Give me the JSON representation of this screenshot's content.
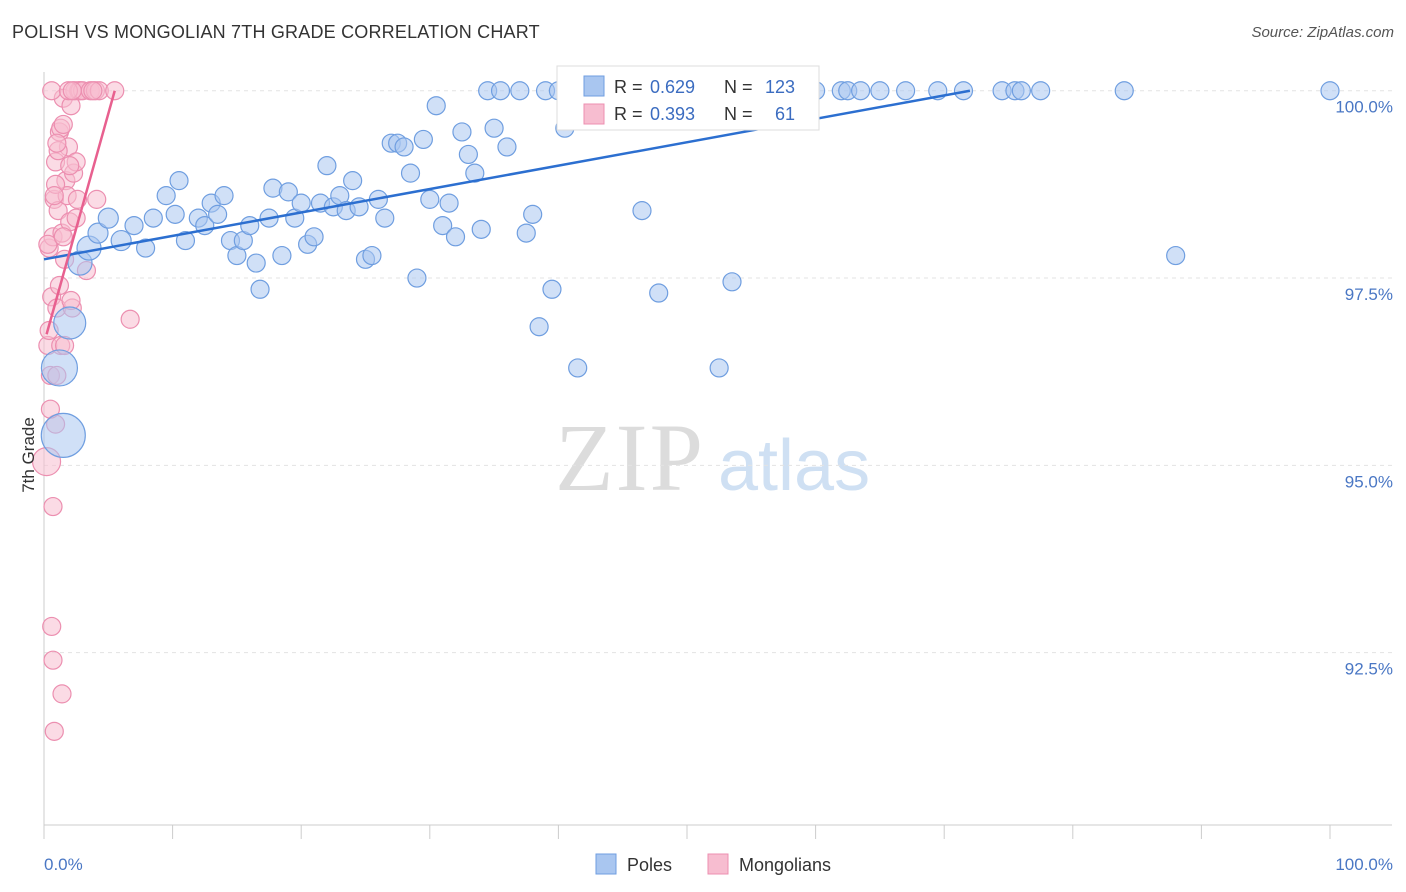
{
  "title": "POLISH VS MONGOLIAN 7TH GRADE CORRELATION CHART",
  "source": "Source: ZipAtlas.com",
  "watermark": {
    "zip": "ZIP",
    "atlas": "atlas"
  },
  "colors": {
    "poles_fill": "#a9c6f0",
    "poles_stroke": "#6f9ee0",
    "poles_line": "#2c6fd0",
    "mongolians_fill": "#f7bdd0",
    "mongolians_stroke": "#ec8fb0",
    "mongolians_line": "#e8608f",
    "axis_text": "#4a77c4",
    "grid": "#e3e3e3"
  },
  "stats": {
    "poles": {
      "r_label": "R =",
      "r_value": "0.629",
      "n_label": "N =",
      "n_value": "123"
    },
    "mongolians": {
      "r_label": "R =",
      "r_value": "0.393",
      "n_label": "N =",
      "n_value": "61"
    }
  },
  "chart_data": {
    "type": "scatter",
    "title": "POLISH VS MONGOLIAN 7TH GRADE CORRELATION CHART",
    "xlabel": "",
    "ylabel": "7th Grade",
    "xlim": [
      0,
      100
    ],
    "ylim": [
      90.2,
      100.25
    ],
    "x_tick_labels": [
      "0.0%",
      "100.0%"
    ],
    "y_ticks": [
      {
        "value": 100.0,
        "label": "100.0%"
      },
      {
        "value": 97.5,
        "label": "97.5%"
      },
      {
        "value": 95.0,
        "label": "95.0%"
      },
      {
        "value": 92.5,
        "label": "92.5%"
      }
    ],
    "legend": [
      "Poles",
      "Mongolians"
    ],
    "series": [
      {
        "name": "Poles",
        "trend": [
          [
            0,
            97.75
          ],
          [
            72,
            100.0
          ]
        ],
        "points": [
          [
            1.2,
            96.3,
            18
          ],
          [
            1.5,
            95.4,
            22
          ],
          [
            2.0,
            96.9,
            16
          ],
          [
            2.8,
            97.7,
            12
          ],
          [
            3.5,
            97.9,
            12
          ],
          [
            4.2,
            98.1,
            10
          ],
          [
            5.0,
            98.3,
            10
          ],
          [
            6.0,
            98.0,
            10
          ],
          [
            7.0,
            98.2,
            9
          ],
          [
            7.9,
            97.9,
            9
          ],
          [
            8.5,
            98.3,
            9
          ],
          [
            9.5,
            98.6,
            9
          ],
          [
            10.2,
            98.35,
            9
          ],
          [
            10.5,
            98.8,
            9
          ],
          [
            11.0,
            98.0,
            9
          ],
          [
            12.0,
            98.3,
            9
          ],
          [
            12.5,
            98.2,
            9
          ],
          [
            13.0,
            98.5,
            9
          ],
          [
            13.5,
            98.35,
            9
          ],
          [
            14.0,
            98.6,
            9
          ],
          [
            14.5,
            98.0,
            9
          ],
          [
            15.0,
            97.8,
            9
          ],
          [
            15.5,
            98.0,
            9
          ],
          [
            16.0,
            98.2,
            9
          ],
          [
            16.5,
            97.7,
            9
          ],
          [
            16.8,
            97.35,
            9
          ],
          [
            17.5,
            98.3,
            9
          ],
          [
            17.8,
            98.7,
            9
          ],
          [
            18.5,
            97.8,
            9
          ],
          [
            19.0,
            98.65,
            9
          ],
          [
            19.5,
            98.3,
            9
          ],
          [
            20.0,
            98.5,
            9
          ],
          [
            20.5,
            97.95,
            9
          ],
          [
            21.0,
            98.05,
            9
          ],
          [
            21.5,
            98.5,
            9
          ],
          [
            22.0,
            99.0,
            9
          ],
          [
            22.5,
            98.45,
            9
          ],
          [
            23.0,
            98.6,
            9
          ],
          [
            23.5,
            98.4,
            9
          ],
          [
            24.0,
            98.8,
            9
          ],
          [
            24.5,
            98.45,
            9
          ],
          [
            25.0,
            97.75,
            9
          ],
          [
            25.5,
            97.8,
            9
          ],
          [
            26.0,
            98.55,
            9
          ],
          [
            26.5,
            98.3,
            9
          ],
          [
            27.0,
            99.3,
            9
          ],
          [
            27.5,
            99.3,
            9
          ],
          [
            28.0,
            99.25,
            9
          ],
          [
            28.5,
            98.9,
            9
          ],
          [
            29.0,
            97.5,
            9
          ],
          [
            29.5,
            99.35,
            9
          ],
          [
            30.0,
            98.55,
            9
          ],
          [
            30.5,
            99.8,
            9
          ],
          [
            31.0,
            98.2,
            9
          ],
          [
            31.5,
            98.5,
            9
          ],
          [
            32.0,
            98.05,
            9
          ],
          [
            32.5,
            99.45,
            9
          ],
          [
            33.0,
            99.15,
            9
          ],
          [
            33.5,
            98.9,
            9
          ],
          [
            34.0,
            98.15,
            9
          ],
          [
            34.5,
            100.0,
            9
          ],
          [
            35.0,
            99.5,
            9
          ],
          [
            35.5,
            100.0,
            9
          ],
          [
            36.0,
            99.25,
            9
          ],
          [
            37.0,
            100.0,
            9
          ],
          [
            37.5,
            98.1,
            9
          ],
          [
            38.0,
            98.35,
            9
          ],
          [
            38.5,
            96.85,
            9
          ],
          [
            39.0,
            100.0,
            9
          ],
          [
            39.5,
            97.35,
            9
          ],
          [
            40.0,
            100.0,
            9
          ],
          [
            40.5,
            99.5,
            9
          ],
          [
            41.0,
            100.0,
            9
          ],
          [
            41.5,
            96.3,
            9
          ],
          [
            43.0,
            100.0,
            9
          ],
          [
            45.0,
            100.0,
            9
          ],
          [
            46.5,
            98.4,
            9
          ],
          [
            47.5,
            100.0,
            9
          ],
          [
            47.8,
            97.3,
            9
          ],
          [
            49.5,
            100.0,
            9
          ],
          [
            51.5,
            100.0,
            9
          ],
          [
            52.5,
            96.3,
            9
          ],
          [
            53.5,
            97.45,
            9
          ],
          [
            55.0,
            100.0,
            9
          ],
          [
            56.5,
            100.0,
            9
          ],
          [
            58.0,
            100.0,
            9
          ],
          [
            60.0,
            100.0,
            9
          ],
          [
            62.0,
            100.0,
            9
          ],
          [
            62.5,
            100.0,
            9
          ],
          [
            63.5,
            100.0,
            9
          ],
          [
            65.0,
            100.0,
            9
          ],
          [
            67.0,
            100.0,
            9
          ],
          [
            69.5,
            100.0,
            9
          ],
          [
            71.5,
            100.0,
            9
          ],
          [
            74.5,
            100.0,
            9
          ],
          [
            75.5,
            100.0,
            9
          ],
          [
            76.0,
            100.0,
            9
          ],
          [
            77.5,
            100.0,
            9
          ],
          [
            84.0,
            100.0,
            9
          ],
          [
            88.0,
            97.8,
            9
          ],
          [
            100.0,
            100.0,
            9
          ]
        ]
      },
      {
        "name": "Mongolians",
        "trend": [
          [
            0.2,
            96.75
          ],
          [
            5.5,
            100.0
          ]
        ],
        "points": [
          [
            0.2,
            95.05,
            14
          ],
          [
            0.3,
            96.6,
            9
          ],
          [
            0.4,
            97.9,
            9
          ],
          [
            0.5,
            96.2,
            9
          ],
          [
            0.6,
            97.25,
            9
          ],
          [
            0.7,
            98.05,
            9
          ],
          [
            0.8,
            98.55,
            9
          ],
          [
            0.9,
            99.05,
            9
          ],
          [
            1.0,
            97.1,
            9
          ],
          [
            1.1,
            98.4,
            9
          ],
          [
            1.2,
            99.45,
            9
          ],
          [
            1.3,
            96.6,
            9
          ],
          [
            1.4,
            98.1,
            9
          ],
          [
            1.5,
            99.9,
            9
          ],
          [
            1.6,
            97.75,
            9
          ],
          [
            1.7,
            98.8,
            9
          ],
          [
            1.8,
            98.6,
            9
          ],
          [
            1.9,
            99.25,
            9
          ],
          [
            2.0,
            98.25,
            9
          ],
          [
            2.1,
            99.8,
            9
          ],
          [
            2.2,
            97.1,
            9
          ],
          [
            2.3,
            98.9,
            9
          ],
          [
            2.4,
            100.0,
            9
          ],
          [
            2.5,
            99.05,
            9
          ],
          [
            2.6,
            98.55,
            9
          ],
          [
            2.7,
            100.0,
            9
          ],
          [
            2.8,
            100.0,
            9
          ],
          [
            3.0,
            100.0,
            9
          ],
          [
            3.3,
            97.6,
            9
          ],
          [
            3.6,
            100.0,
            9
          ],
          [
            4.0,
            100.0,
            9
          ],
          [
            4.3,
            100.0,
            9
          ],
          [
            5.5,
            100.0,
            9
          ],
          [
            6.7,
            96.95,
            9
          ],
          [
            0.6,
            92.85,
            9
          ],
          [
            0.7,
            92.4,
            9
          ],
          [
            1.4,
            91.95,
            9
          ],
          [
            0.8,
            91.45,
            9
          ],
          [
            0.7,
            94.45,
            9
          ],
          [
            0.9,
            95.55,
            9
          ],
          [
            0.5,
            95.75,
            9
          ],
          [
            1.0,
            96.2,
            9
          ],
          [
            0.4,
            96.8,
            9
          ],
          [
            1.6,
            96.6,
            9
          ],
          [
            2.1,
            97.2,
            9
          ],
          [
            1.2,
            97.4,
            9
          ],
          [
            0.3,
            97.95,
            9
          ],
          [
            1.5,
            98.05,
            9
          ],
          [
            2.5,
            98.3,
            9
          ],
          [
            0.9,
            98.75,
            9
          ],
          [
            1.1,
            99.2,
            9
          ],
          [
            1.3,
            99.5,
            9
          ],
          [
            1.0,
            99.3,
            9
          ],
          [
            1.5,
            99.55,
            9
          ],
          [
            0.8,
            98.6,
            9
          ],
          [
            4.1,
            98.55,
            9
          ],
          [
            2.0,
            99.0,
            9
          ],
          [
            3.8,
            100.0,
            9
          ],
          [
            0.6,
            100.0,
            9
          ],
          [
            1.9,
            100.0,
            9
          ],
          [
            2.2,
            100.0,
            9
          ]
        ]
      }
    ]
  }
}
